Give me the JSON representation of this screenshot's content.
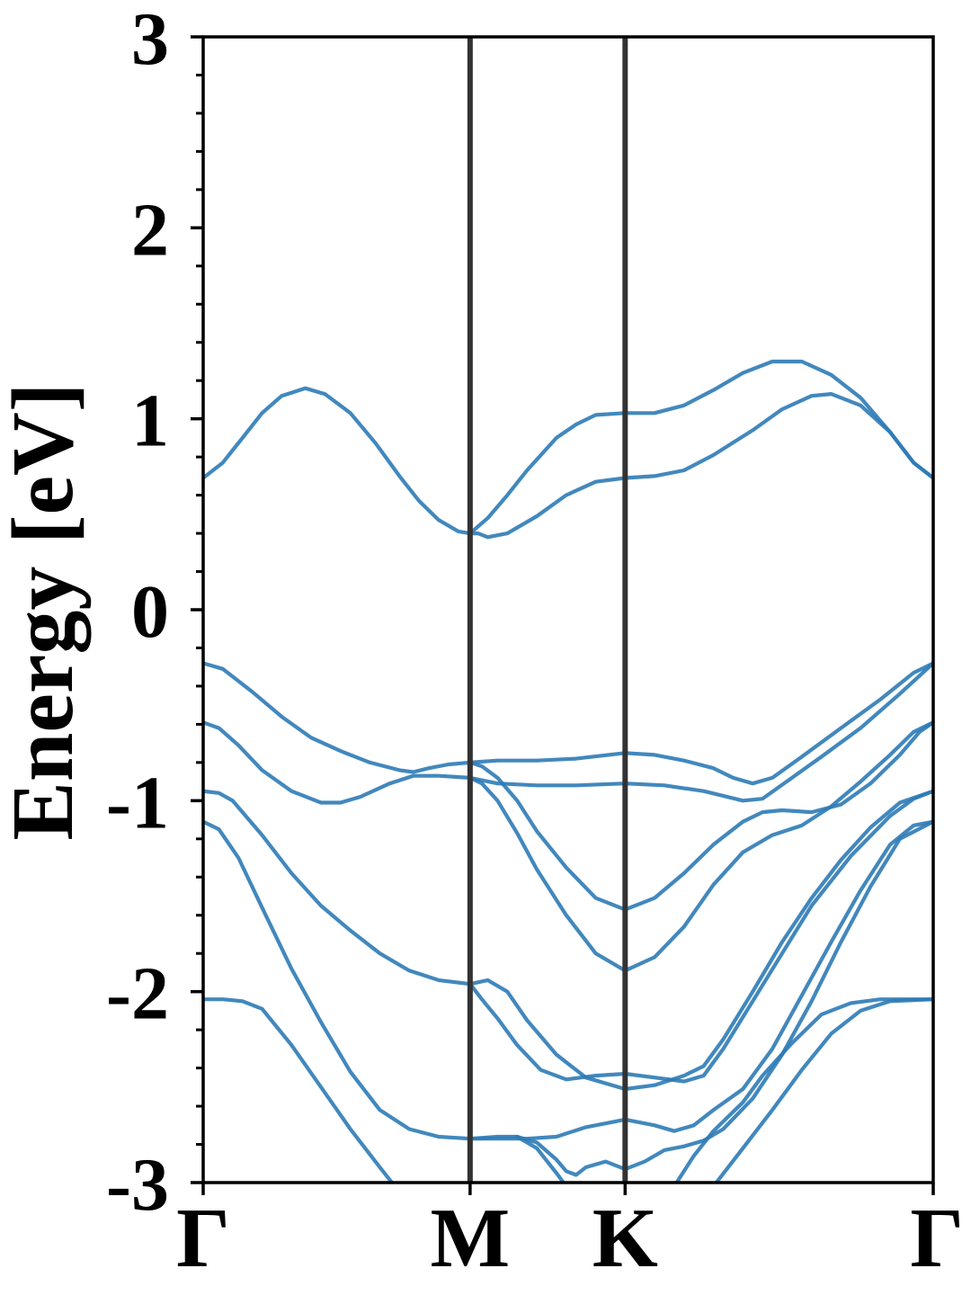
{
  "chart_data": {
    "type": "line",
    "title": "",
    "xlabel": "",
    "ylabel": "Energy [eV]",
    "ylim": [
      -3,
      3
    ],
    "xlim": [
      0,
      3.72
    ],
    "y_ticks": [
      {
        "value": 3,
        "label": "3"
      },
      {
        "value": 2,
        "label": "2"
      },
      {
        "value": 1,
        "label": "1"
      },
      {
        "value": 0,
        "label": "0"
      },
      {
        "value": -1,
        "label": "-1"
      },
      {
        "value": -2,
        "label": "-2"
      },
      {
        "value": -3,
        "label": "-3"
      }
    ],
    "y_minor_step": 0.2,
    "x_ticks": [
      {
        "value": 0,
        "label": "Γ"
      },
      {
        "value": 1.36,
        "label": "M"
      },
      {
        "value": 2.15,
        "label": "K"
      },
      {
        "value": 3.72,
        "label": "Γ"
      }
    ],
    "grid": false,
    "legend": "none",
    "colors": {
      "band": "#2e7bb6",
      "kpath_line": "#333333",
      "axes": "#000000"
    },
    "series": [
      {
        "points": [
          [
            0,
            0.69
          ],
          [
            0.1,
            0.77
          ],
          [
            0.2,
            0.9
          ],
          [
            0.3,
            1.03
          ],
          [
            0.4,
            1.12
          ],
          [
            0.52,
            1.16
          ],
          [
            0.62,
            1.13
          ],
          [
            0.75,
            1.03
          ],
          [
            0.88,
            0.87
          ],
          [
            1.0,
            0.7
          ],
          [
            1.1,
            0.57
          ],
          [
            1.2,
            0.47
          ],
          [
            1.3,
            0.41
          ],
          [
            1.36,
            0.4
          ],
          [
            1.45,
            0.48
          ],
          [
            1.55,
            0.6
          ],
          [
            1.65,
            0.73
          ],
          [
            1.8,
            0.9
          ],
          [
            1.9,
            0.97
          ],
          [
            2.0,
            1.02
          ],
          [
            2.15,
            1.03
          ],
          [
            2.3,
            1.03
          ],
          [
            2.45,
            1.07
          ],
          [
            2.6,
            1.15
          ],
          [
            2.75,
            1.24
          ],
          [
            2.9,
            1.3
          ],
          [
            3.05,
            1.3
          ],
          [
            3.2,
            1.23
          ],
          [
            3.35,
            1.11
          ],
          [
            3.5,
            0.93
          ],
          [
            3.62,
            0.77
          ],
          [
            3.72,
            0.69
          ]
        ]
      },
      {
        "points": [
          [
            1.36,
            0.4
          ],
          [
            1.4,
            0.4
          ],
          [
            1.45,
            0.38
          ],
          [
            1.55,
            0.4
          ],
          [
            1.7,
            0.49
          ],
          [
            1.85,
            0.6
          ],
          [
            2.0,
            0.67
          ],
          [
            2.15,
            0.69
          ],
          [
            2.3,
            0.7
          ],
          [
            2.45,
            0.73
          ],
          [
            2.6,
            0.81
          ],
          [
            2.8,
            0.94
          ],
          [
            2.95,
            1.05
          ],
          [
            3.1,
            1.12
          ],
          [
            3.2,
            1.13
          ],
          [
            3.35,
            1.07
          ],
          [
            3.5,
            0.93
          ],
          [
            3.62,
            0.77
          ],
          [
            3.72,
            0.69
          ]
        ]
      },
      {
        "points": [
          [
            0,
            -0.28
          ],
          [
            0.1,
            -0.31
          ],
          [
            0.25,
            -0.43
          ],
          [
            0.4,
            -0.56
          ],
          [
            0.55,
            -0.67
          ],
          [
            0.7,
            -0.74
          ],
          [
            0.85,
            -0.8
          ],
          [
            1.0,
            -0.84
          ],
          [
            1.07,
            -0.85
          ],
          [
            1.15,
            -0.83
          ],
          [
            1.25,
            -0.81
          ],
          [
            1.36,
            -0.8
          ],
          [
            1.5,
            -0.79
          ],
          [
            1.7,
            -0.79
          ],
          [
            1.9,
            -0.78
          ],
          [
            2.15,
            -0.75
          ],
          [
            2.3,
            -0.76
          ],
          [
            2.45,
            -0.79
          ],
          [
            2.6,
            -0.83
          ],
          [
            2.7,
            -0.88
          ],
          [
            2.8,
            -0.91
          ],
          [
            2.9,
            -0.88
          ],
          [
            3.05,
            -0.77
          ],
          [
            3.25,
            -0.62
          ],
          [
            3.45,
            -0.47
          ],
          [
            3.62,
            -0.33
          ],
          [
            3.72,
            -0.28
          ]
        ]
      },
      {
        "points": [
          [
            0,
            -0.59
          ],
          [
            0.08,
            -0.62
          ],
          [
            0.18,
            -0.71
          ],
          [
            0.3,
            -0.84
          ],
          [
            0.45,
            -0.95
          ],
          [
            0.6,
            -1.01
          ],
          [
            0.7,
            -1.01
          ],
          [
            0.8,
            -0.98
          ],
          [
            0.95,
            -0.91
          ],
          [
            1.07,
            -0.87
          ],
          [
            1.2,
            -0.87
          ],
          [
            1.36,
            -0.88
          ],
          [
            1.5,
            -0.91
          ],
          [
            1.7,
            -0.92
          ],
          [
            1.9,
            -0.92
          ],
          [
            2.15,
            -0.91
          ],
          [
            2.35,
            -0.92
          ],
          [
            2.55,
            -0.95
          ],
          [
            2.75,
            -1.0
          ],
          [
            2.85,
            -0.99
          ],
          [
            3.0,
            -0.88
          ],
          [
            3.15,
            -0.77
          ],
          [
            3.35,
            -0.62
          ],
          [
            3.55,
            -0.44
          ],
          [
            3.72,
            -0.28
          ]
        ]
      },
      {
        "points": [
          [
            1.36,
            -0.8
          ],
          [
            1.42,
            -0.82
          ],
          [
            1.5,
            -0.88
          ],
          [
            1.6,
            -1.0
          ],
          [
            1.7,
            -1.16
          ],
          [
            1.85,
            -1.35
          ],
          [
            2.0,
            -1.51
          ],
          [
            2.15,
            -1.57
          ],
          [
            2.3,
            -1.51
          ],
          [
            2.45,
            -1.38
          ],
          [
            2.6,
            -1.23
          ],
          [
            2.75,
            -1.11
          ],
          [
            2.85,
            -1.06
          ],
          [
            2.95,
            -1.05
          ],
          [
            3.1,
            -1.06
          ],
          [
            3.25,
            -1.02
          ],
          [
            3.4,
            -0.91
          ],
          [
            3.55,
            -0.76
          ],
          [
            3.65,
            -0.64
          ],
          [
            3.72,
            -0.59
          ]
        ]
      },
      {
        "points": [
          [
            1.36,
            -0.88
          ],
          [
            1.42,
            -0.91
          ],
          [
            1.5,
            -1.0
          ],
          [
            1.6,
            -1.17
          ],
          [
            1.7,
            -1.36
          ],
          [
            1.85,
            -1.6
          ],
          [
            2.0,
            -1.8
          ],
          [
            2.15,
            -1.89
          ],
          [
            2.3,
            -1.82
          ],
          [
            2.45,
            -1.66
          ],
          [
            2.6,
            -1.44
          ],
          [
            2.75,
            -1.27
          ],
          [
            2.9,
            -1.18
          ],
          [
            3.05,
            -1.13
          ],
          [
            3.2,
            -1.03
          ],
          [
            3.35,
            -0.9
          ],
          [
            3.5,
            -0.76
          ],
          [
            3.62,
            -0.64
          ],
          [
            3.72,
            -0.59
          ]
        ]
      },
      {
        "points": [
          [
            0,
            -0.95
          ],
          [
            0.08,
            -0.96
          ],
          [
            0.15,
            -1.0
          ],
          [
            0.3,
            -1.18
          ],
          [
            0.45,
            -1.38
          ],
          [
            0.6,
            -1.55
          ],
          [
            0.75,
            -1.68
          ],
          [
            0.9,
            -1.8
          ],
          [
            1.05,
            -1.89
          ],
          [
            1.2,
            -1.94
          ],
          [
            1.36,
            -1.96
          ],
          [
            1.42,
            -2.04
          ],
          [
            1.5,
            -2.14
          ],
          [
            1.6,
            -2.28
          ],
          [
            1.72,
            -2.41
          ],
          [
            1.85,
            -2.46
          ],
          [
            2.0,
            -2.44
          ],
          [
            2.15,
            -2.43
          ],
          [
            2.3,
            -2.45
          ],
          [
            2.45,
            -2.47
          ],
          [
            2.55,
            -2.44
          ],
          [
            2.65,
            -2.3
          ],
          [
            2.8,
            -2.05
          ],
          [
            2.95,
            -1.8
          ],
          [
            3.1,
            -1.55
          ],
          [
            3.3,
            -1.29
          ],
          [
            3.5,
            -1.08
          ],
          [
            3.62,
            -0.99
          ],
          [
            3.72,
            -0.95
          ]
        ]
      },
      {
        "points": [
          [
            1.36,
            -1.96
          ],
          [
            1.45,
            -1.94
          ],
          [
            1.55,
            -2.0
          ],
          [
            1.65,
            -2.15
          ],
          [
            1.8,
            -2.33
          ],
          [
            1.95,
            -2.45
          ],
          [
            2.15,
            -2.51
          ],
          [
            2.3,
            -2.49
          ],
          [
            2.45,
            -2.44
          ],
          [
            2.55,
            -2.39
          ],
          [
            2.65,
            -2.25
          ],
          [
            2.8,
            -2.0
          ],
          [
            2.95,
            -1.74
          ],
          [
            3.1,
            -1.51
          ],
          [
            3.25,
            -1.31
          ],
          [
            3.4,
            -1.14
          ],
          [
            3.55,
            -1.01
          ],
          [
            3.72,
            -0.95
          ]
        ]
      },
      {
        "points": [
          [
            0,
            -1.11
          ],
          [
            0.08,
            -1.15
          ],
          [
            0.18,
            -1.3
          ],
          [
            0.3,
            -1.56
          ],
          [
            0.45,
            -1.88
          ],
          [
            0.6,
            -2.16
          ],
          [
            0.75,
            -2.42
          ],
          [
            0.9,
            -2.62
          ],
          [
            1.05,
            -2.72
          ],
          [
            1.2,
            -2.76
          ],
          [
            1.36,
            -2.77
          ],
          [
            1.5,
            -2.77
          ],
          [
            1.65,
            -2.77
          ],
          [
            1.8,
            -2.76
          ],
          [
            1.95,
            -2.71
          ],
          [
            2.15,
            -2.67
          ],
          [
            2.3,
            -2.7
          ],
          [
            2.4,
            -2.73
          ],
          [
            2.5,
            -2.7
          ],
          [
            2.6,
            -2.62
          ],
          [
            2.75,
            -2.51
          ],
          [
            2.9,
            -2.3
          ],
          [
            3.05,
            -2.02
          ],
          [
            3.2,
            -1.74
          ],
          [
            3.35,
            -1.47
          ],
          [
            3.5,
            -1.23
          ],
          [
            3.62,
            -1.13
          ],
          [
            3.72,
            -1.11
          ]
        ]
      },
      {
        "points": [
          [
            1.36,
            -2.77
          ],
          [
            1.5,
            -2.76
          ],
          [
            1.6,
            -2.76
          ],
          [
            1.7,
            -2.79
          ],
          [
            1.8,
            -2.88
          ],
          [
            1.85,
            -2.94
          ],
          [
            1.9,
            -2.96
          ],
          [
            1.95,
            -2.92
          ],
          [
            2.05,
            -2.89
          ],
          [
            2.15,
            -2.93
          ],
          [
            2.25,
            -2.89
          ],
          [
            2.35,
            -2.83
          ],
          [
            2.45,
            -2.81
          ],
          [
            2.55,
            -2.78
          ],
          [
            2.65,
            -2.72
          ],
          [
            2.8,
            -2.56
          ],
          [
            2.95,
            -2.33
          ],
          [
            3.1,
            -2.05
          ],
          [
            3.25,
            -1.74
          ],
          [
            3.4,
            -1.45
          ],
          [
            3.55,
            -1.2
          ],
          [
            3.72,
            -1.11
          ]
        ]
      },
      {
        "points": [
          [
            0,
            -2.04
          ],
          [
            0.1,
            -2.04
          ],
          [
            0.2,
            -2.05
          ],
          [
            0.3,
            -2.09
          ],
          [
            0.45,
            -2.28
          ],
          [
            0.6,
            -2.5
          ],
          [
            0.75,
            -2.72
          ],
          [
            0.9,
            -2.92
          ],
          [
            1.0,
            -3.05
          ]
        ]
      },
      {
        "points": [
          [
            1.6,
            -2.76
          ],
          [
            1.7,
            -2.82
          ],
          [
            1.8,
            -2.95
          ],
          [
            1.85,
            -3.02
          ]
        ]
      },
      {
        "points": [
          [
            2.4,
            -3.02
          ],
          [
            2.5,
            -2.86
          ],
          [
            2.6,
            -2.73
          ],
          [
            2.75,
            -2.58
          ],
          [
            2.85,
            -2.44
          ],
          [
            3.0,
            -2.27
          ],
          [
            3.15,
            -2.12
          ],
          [
            3.3,
            -2.06
          ],
          [
            3.45,
            -2.04
          ],
          [
            3.72,
            -2.04
          ]
        ]
      },
      {
        "points": [
          [
            2.6,
            -3.02
          ],
          [
            2.75,
            -2.82
          ],
          [
            2.9,
            -2.62
          ],
          [
            3.05,
            -2.41
          ],
          [
            3.2,
            -2.22
          ],
          [
            3.35,
            -2.1
          ],
          [
            3.5,
            -2.05
          ],
          [
            3.72,
            -2.04
          ]
        ]
      }
    ]
  }
}
